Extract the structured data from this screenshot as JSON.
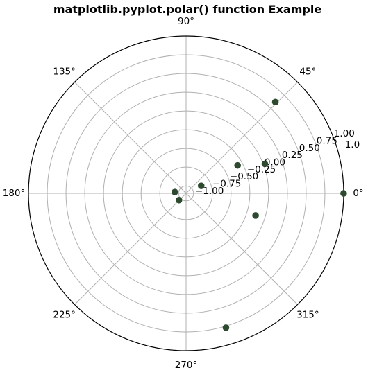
{
  "chart_data": {
    "type": "scatter",
    "projection": "polar",
    "title": "matplotlib.pyplot.polar() function Example",
    "angle_tick_labels": [
      "0°",
      "45°",
      "90°",
      "135°",
      "180°",
      "225°",
      "270°",
      "315°"
    ],
    "angle_ticks_deg": [
      0,
      45,
      90,
      135,
      180,
      225,
      270,
      315
    ],
    "radius_tick_labels": [
      "−1.00",
      "−0.75",
      "−0.50",
      "−0.25",
      "0.00",
      "0.25",
      "0.50",
      "0.75",
      "1.00",
      "1.0"
    ],
    "radius_ticks": [
      -1.0,
      -0.75,
      -0.5,
      -0.25,
      0.0,
      0.25,
      0.5,
      0.75,
      1.0,
      1.0
    ],
    "rlim": [
      -1.1,
      1.0
    ],
    "grid": true,
    "marker_color": "#2d4a2f",
    "frame_color": "#000000",
    "grid_color": "#b0b0b0",
    "points": [
      {
        "theta_deg": 0,
        "r": 0.999
      },
      {
        "theta_deg": 45.7,
        "r": 0.603
      },
      {
        "theta_deg": 20.6,
        "r": 0.021
      },
      {
        "theta_deg": 28.5,
        "r": -0.319
      },
      {
        "theta_deg": 26.5,
        "r": -0.875
      },
      {
        "theta_deg": 173.4,
        "r": -0.949
      },
      {
        "theta_deg": 223.6,
        "r": -0.969
      },
      {
        "theta_deg": 342.3,
        "r": -0.128
      },
      {
        "theta_deg": 286.5,
        "r": 0.771
      }
    ]
  }
}
